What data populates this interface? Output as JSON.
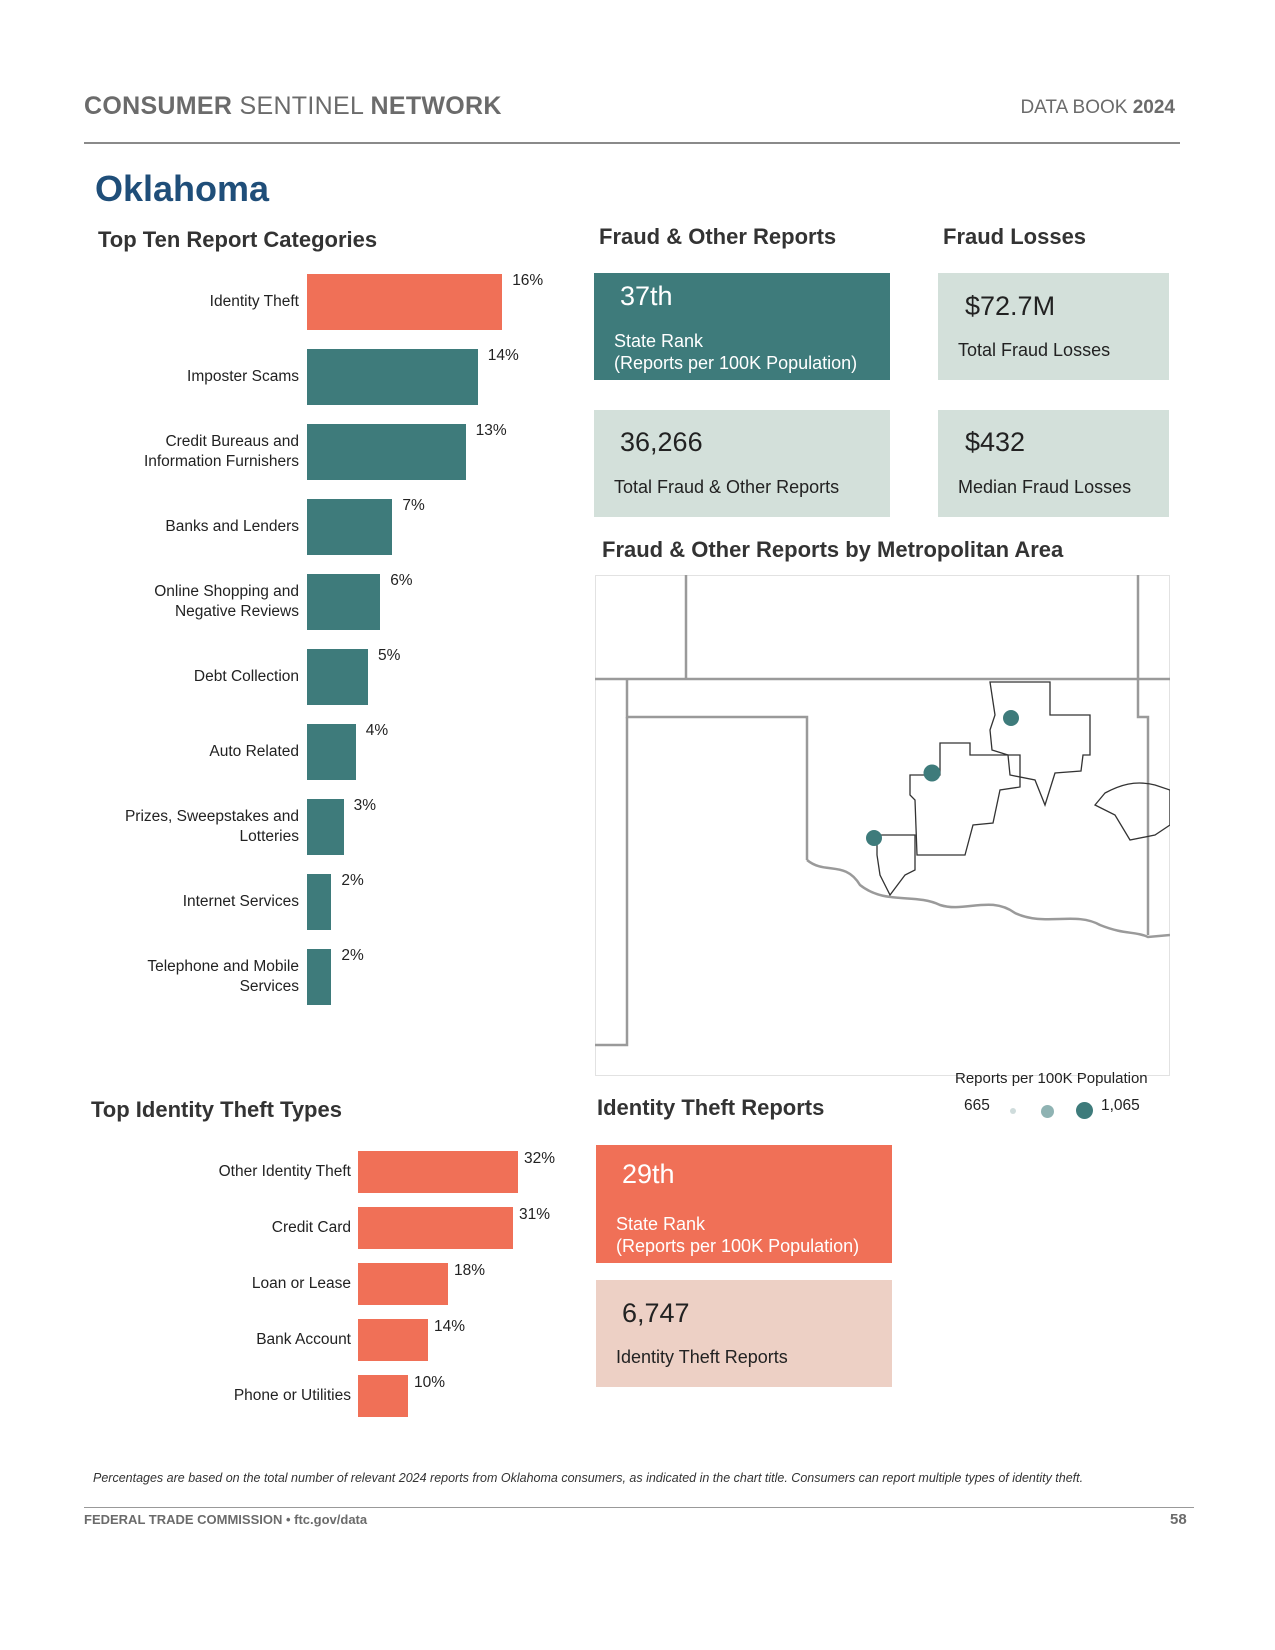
{
  "header": {
    "network_part1": "CONSUMER",
    "network_part2": "SENTINEL",
    "network_part3": "NETWORK",
    "databook_label": "DATA BOOK",
    "databook_year": "2024"
  },
  "state_name": "Oklahoma",
  "top_ten": {
    "title": "Top Ten Report Categories",
    "color_highlight": "#f07057",
    "color_bar": "#3e7b7b",
    "chart_data": {
      "type": "bar",
      "orientation": "horizontal",
      "categories": [
        [
          "Identity Theft"
        ],
        [
          "Imposter Scams"
        ],
        [
          "Credit Bureaus and",
          "Information Furnishers"
        ],
        [
          "Banks and Lenders"
        ],
        [
          "Online Shopping and",
          "Negative Reviews"
        ],
        [
          "Debt Collection"
        ],
        [
          "Auto Related"
        ],
        [
          "Prizes, Sweepstakes and",
          "Lotteries"
        ],
        [
          "Internet Services"
        ],
        [
          "Telephone and Mobile",
          "Services"
        ]
      ],
      "values": [
        16,
        14,
        13,
        7,
        6,
        5,
        4,
        3,
        2,
        2
      ],
      "value_labels": [
        "16%",
        "14%",
        "13%",
        "7%",
        "6%",
        "5%",
        "4%",
        "3%",
        "2%",
        "2%"
      ]
    }
  },
  "fraud_reports": {
    "title": "Fraud & Other Reports",
    "rank_value": "37th",
    "rank_line1": "State Rank",
    "rank_line2": "(Reports per 100K Population)",
    "total_value": "36,266",
    "total_label": "Total Fraud & Other Reports"
  },
  "fraud_losses": {
    "title": "Fraud Losses",
    "total_value": "$72.7M",
    "total_label": "Total Fraud Losses",
    "median_value": "$432",
    "median_label": "Median Fraud Losses"
  },
  "metro_map": {
    "title": "Fraud & Other Reports by Metropolitan Area",
    "legend_title": "Reports per 100K Population",
    "legend_min": "665",
    "legend_max": "1,065"
  },
  "identity_types": {
    "title": "Top Identity Theft Types",
    "color": "#f07057",
    "chart_data": {
      "type": "bar",
      "orientation": "horizontal",
      "categories": [
        "Other Identity Theft",
        "Credit Card",
        "Loan or Lease",
        "Bank Account",
        "Phone or Utilities"
      ],
      "values": [
        32,
        31,
        18,
        14,
        10
      ],
      "value_labels": [
        "32%",
        "31%",
        "18%",
        "14%",
        "10%"
      ]
    }
  },
  "identity_reports": {
    "title": "Identity Theft Reports",
    "rank_value": "29th",
    "rank_line1": "State Rank",
    "rank_line2": "(Reports per 100K Population)",
    "total_value": "6,747",
    "total_label": "Identity Theft Reports"
  },
  "footer": {
    "note": "Percentages are based on the total number of relevant 2024 reports from Oklahoma consumers, as indicated in the chart title.  Consumers can report multiple types of identity theft.",
    "source": "FEDERAL TRADE COMMISSION • ftc.gov/data",
    "page_number": "58"
  }
}
